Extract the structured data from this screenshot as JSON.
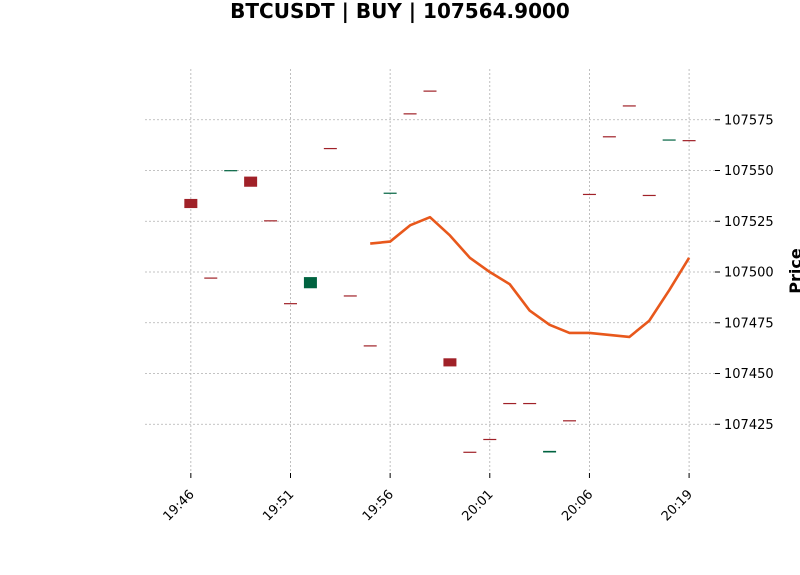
{
  "chart_data": {
    "type": "candlestick",
    "title": "BTCUSDT | BUY | 107564.9000",
    "ylabel": "Price",
    "xlabel": "",
    "xlim": [
      -2.3,
      26.3
    ],
    "ylim": [
      107401,
      107600
    ],
    "grid": true,
    "y_ticks": [
      107425,
      107450,
      107475,
      107500,
      107525,
      107550,
      107575
    ],
    "y_tick_labels": [
      "107425",
      "107450",
      "107475",
      "107500",
      "107525",
      "107550",
      "107575"
    ],
    "x_ticks": [
      0,
      5,
      10,
      15,
      20,
      25
    ],
    "x_tick_labels": [
      "19:46",
      "19:51",
      "19:56",
      "20:01",
      "20:06",
      "20:19"
    ],
    "colors": {
      "up": "#006340",
      "down": "#a02128",
      "line": "#e8581c"
    },
    "candles": [
      {
        "x": 0,
        "open": 107536.0,
        "close": 107531.5
      },
      {
        "x": 1,
        "open": 107497.3,
        "close": 107496.9
      },
      {
        "x": 2,
        "open": 107549.8,
        "close": 107550.2
      },
      {
        "x": 3,
        "open": 107547.0,
        "close": 107542.0
      },
      {
        "x": 4,
        "open": 107525.5,
        "close": 107525.1
      },
      {
        "x": 5,
        "open": 107484.7,
        "close": 107484.3
      },
      {
        "x": 6,
        "open": 107492.0,
        "close": 107497.5
      },
      {
        "x": 7,
        "open": 107561.1,
        "close": 107560.7
      },
      {
        "x": 8,
        "open": 107488.5,
        "close": 107488.1
      },
      {
        "x": 9,
        "open": 107463.9,
        "close": 107463.5
      },
      {
        "x": 10,
        "open": 107538.7,
        "close": 107539.1
      },
      {
        "x": 11,
        "open": 107578.2,
        "close": 107577.8
      },
      {
        "x": 12,
        "open": 107589.4,
        "close": 107589.0
      },
      {
        "x": 13,
        "open": 107457.5,
        "close": 107453.5
      },
      {
        "x": 14,
        "open": 107411.5,
        "close": 107411.1
      },
      {
        "x": 15,
        "open": 107417.8,
        "close": 107417.4
      },
      {
        "x": 16,
        "open": 107435.5,
        "close": 107435.1
      },
      {
        "x": 17,
        "open": 107435.5,
        "close": 107435.1
      },
      {
        "x": 18,
        "open": 107411.1,
        "close": 107411.9
      },
      {
        "x": 19,
        "open": 107427.0,
        "close": 107426.6
      },
      {
        "x": 20,
        "open": 107538.5,
        "close": 107538.1
      },
      {
        "x": 21,
        "open": 107566.9,
        "close": 107566.5
      },
      {
        "x": 22,
        "open": 107582.1,
        "close": 107581.7
      },
      {
        "x": 23,
        "open": 107538.0,
        "close": 107537.6
      },
      {
        "x": 24,
        "open": 107564.9,
        "close": 107565.3
      },
      {
        "x": 25,
        "open": 107565.0,
        "close": 107564.6
      }
    ],
    "line_series": {
      "x": [
        9,
        10,
        11,
        12,
        13,
        14,
        15,
        16,
        17,
        18,
        19,
        20,
        21,
        22,
        23,
        24,
        25
      ],
      "values": [
        107514,
        107515,
        107523,
        107527,
        107518,
        107507,
        107500,
        107494,
        107481,
        107474,
        107470,
        107470,
        107469,
        107468,
        107476,
        107491,
        107507
      ]
    }
  }
}
